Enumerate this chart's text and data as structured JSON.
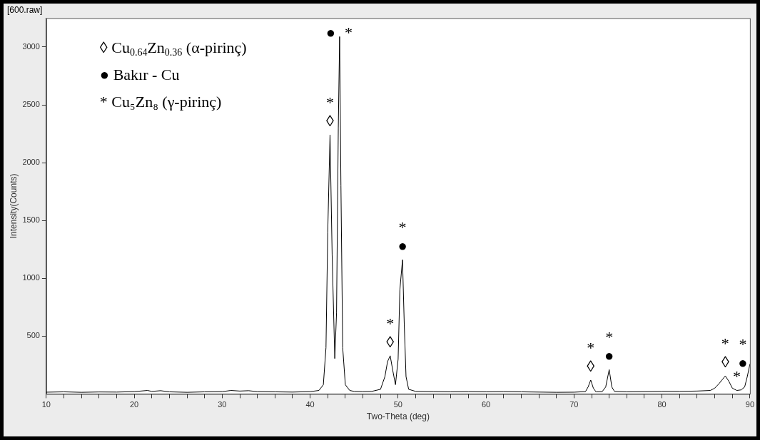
{
  "chart_data": {
    "type": "line",
    "title": "[600.raw]",
    "xlabel": "Two-Theta (deg)",
    "ylabel": "Intensity(Counts)",
    "xlim": [
      10,
      90
    ],
    "ylim": [
      0,
      3250
    ],
    "xticks": [
      10,
      {
        "value": 12,
        "label": null
      },
      {
        "value": 14,
        "label": null
      },
      {
        "value": 16,
        "label": null
      },
      {
        "value": 18,
        "label": null
      },
      20,
      {
        "value": 22,
        "label": null
      },
      {
        "value": 24,
        "label": null
      },
      {
        "value": 26,
        "label": null
      },
      {
        "value": 28,
        "label": null
      },
      30,
      {
        "value": 32,
        "label": null
      },
      {
        "value": 34,
        "label": null
      },
      {
        "value": 36,
        "label": null
      },
      {
        "value": 38,
        "label": null
      },
      40,
      {
        "value": 42,
        "label": null
      },
      {
        "value": 44,
        "label": null
      },
      {
        "value": 46,
        "label": null
      },
      {
        "value": 48,
        "label": null
      },
      50,
      {
        "value": 52,
        "label": null
      },
      {
        "value": 54,
        "label": null
      },
      {
        "value": 56,
        "label": null
      },
      {
        "value": 58,
        "label": null
      },
      60,
      {
        "value": 62,
        "label": null
      },
      {
        "value": 64,
        "label": null
      },
      {
        "value": 66,
        "label": null
      },
      {
        "value": 68,
        "label": null
      },
      70,
      {
        "value": 72,
        "label": null
      },
      {
        "value": 74,
        "label": null
      },
      {
        "value": 76,
        "label": null
      },
      {
        "value": 78,
        "label": null
      },
      80,
      {
        "value": 82,
        "label": null
      },
      {
        "value": 84,
        "label": null
      },
      {
        "value": 86,
        "label": null
      },
      {
        "value": 88,
        "label": null
      },
      90
    ],
    "yticks": [
      500,
      1000,
      1500,
      2000,
      2500,
      3000
    ],
    "marker": "none",
    "line_style": "solid",
    "series": [
      {
        "color": "#000000",
        "x": [
          10,
          12,
          14,
          16,
          18,
          20,
          21.5,
          22,
          23,
          24,
          26,
          28,
          30,
          31,
          32,
          33,
          34,
          36,
          38,
          40,
          41,
          41.5,
          41.8,
          42.0,
          42.26,
          42.5,
          42.8,
          43.0,
          43.2,
          43.35,
          43.5,
          43.7,
          44.0,
          44.5,
          45,
          46,
          47,
          48,
          48.5,
          48.8,
          49.1,
          49.4,
          49.7,
          50.0,
          50.2,
          50.5,
          50.7,
          50.9,
          51.2,
          52,
          54,
          56,
          58,
          60,
          62,
          64,
          66,
          68,
          70,
          71.3,
          71.6,
          71.9,
          72.2,
          72.5,
          73.2,
          73.6,
          74.0,
          74.3,
          74.6,
          76,
          78,
          80,
          82,
          84,
          85.5,
          86.0,
          86.5,
          87.2,
          87.6,
          88.0,
          88.5,
          89.0,
          89.4,
          89.7,
          90
        ],
        "values": [
          15,
          18,
          14,
          17,
          16,
          20,
          30,
          22,
          28,
          18,
          14,
          18,
          20,
          30,
          25,
          28,
          20,
          18,
          16,
          20,
          30,
          80,
          400,
          1400,
          2240,
          1200,
          306,
          700,
          2300,
          3090,
          1800,
          400,
          80,
          30,
          22,
          20,
          22,
          40,
          150,
          280,
          330,
          200,
          80,
          300,
          900,
          1160,
          600,
          150,
          40,
          22,
          20,
          18,
          20,
          18,
          20,
          18,
          16,
          14,
          15,
          20,
          60,
          120,
          50,
          18,
          20,
          60,
          210,
          60,
          22,
          18,
          20,
          22,
          22,
          25,
          30,
          50,
          90,
          156,
          110,
          50,
          30,
          35,
          60,
          150,
          258
        ]
      }
    ],
    "annotations": [
      "◊ Cu$_{0.64}$Zn$_{0.36}$ (α-pirinç)",
      "● Bakır - Cu",
      "* Cu₅Zn₈ (γ-pirinç)",
      {
        "text": "◊",
        "x": 42.26,
        "y": 2240
      },
      {
        "text": "*",
        "x": 42.26,
        "y": 2240
      },
      {
        "text": "●",
        "x": 43.35,
        "y": 3090
      },
      {
        "text": "*",
        "x": 43.35,
        "y": 3090
      },
      {
        "text": "◊",
        "x": 49.1,
        "y": 330
      },
      {
        "text": "*",
        "x": 49.1,
        "y": 330
      },
      {
        "text": "●",
        "x": 50.5,
        "y": 1160
      },
      {
        "text": "*",
        "x": 50.5,
        "y": 1160
      },
      {
        "text": "◊",
        "x": 71.9,
        "y": 120
      },
      {
        "text": "*",
        "x": 71.9,
        "y": 120
      },
      {
        "text": "●",
        "x": 74.0,
        "y": 210
      },
      {
        "text": "*",
        "x": 74.0,
        "y": 210
      },
      {
        "text": "◊",
        "x": 87.2,
        "y": 156
      },
      {
        "text": "*",
        "x": 87.2,
        "y": 156
      },
      {
        "text": "*",
        "x": 88.5,
        "y": 30
      },
      {
        "text": "●",
        "x": 89.7,
        "y": 150
      },
      {
        "text": "*",
        "x": 89.7,
        "y": 150
      }
    ]
  }
}
